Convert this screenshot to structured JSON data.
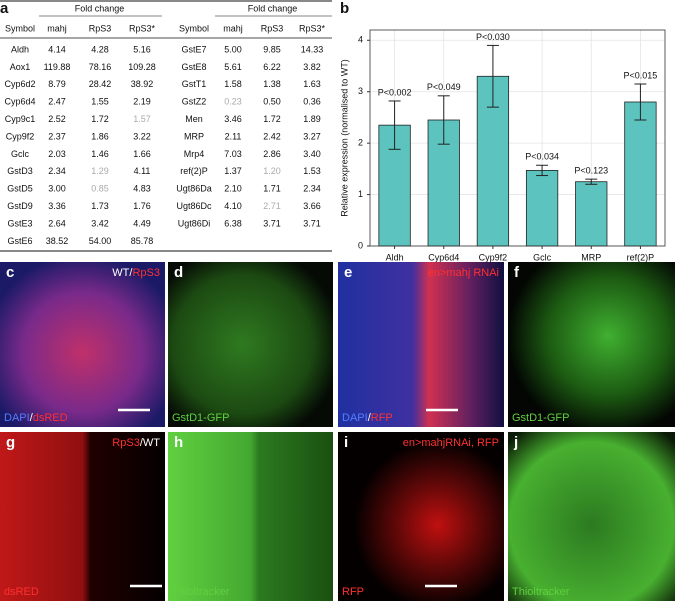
{
  "panel_a": {
    "label": "a",
    "tables": [
      {
        "group_header": "Fold change",
        "columns": [
          "Symbol",
          "mahj",
          "RpS3",
          "RpS3*"
        ],
        "rows": [
          [
            "Aldh",
            "4.14",
            "4.28",
            "5.16"
          ],
          [
            "Aox1",
            "119.88",
            "78.16",
            "109.28"
          ],
          [
            "Cyp6d2",
            "8.79",
            "28.42",
            "38.92"
          ],
          [
            "Cyp6d4",
            "2.47",
            "1.55",
            "2.19"
          ],
          [
            "Cyp9c1",
            "2.52",
            "1.72",
            {
              "text": "1.57",
              "color": "#aaaaaa"
            }
          ],
          [
            "Cyp9f2",
            "2.37",
            "1.86",
            "3.22"
          ],
          [
            "Gclc",
            "2.03",
            "1.46",
            "1.66"
          ],
          [
            "GstD3",
            "2.34",
            {
              "text": "1.29",
              "color": "#aaaaaa"
            },
            "4.11"
          ],
          [
            "GstD5",
            "3.00",
            {
              "text": "0.85",
              "color": "#aaaaaa"
            },
            "4.83"
          ],
          [
            "GstD9",
            "3.36",
            "1.73",
            "1.76"
          ],
          [
            "GstE3",
            "2.64",
            "3.42",
            "4.49"
          ],
          [
            "GstE6",
            "38.52",
            "54.00",
            "85.78"
          ]
        ]
      },
      {
        "group_header": "Fold change",
        "columns": [
          "Symbol",
          "mahj",
          "RpS3",
          "RpS3*"
        ],
        "rows": [
          [
            "GstE7",
            "5.00",
            "9.85",
            "14.33"
          ],
          [
            "GstE8",
            "5.61",
            "6.22",
            "3.82"
          ],
          [
            "GstT1",
            "1.58",
            "1.38",
            "1.63"
          ],
          [
            "GstZ2",
            {
              "text": "0.23",
              "color": "#aaaaaa"
            },
            "0.50",
            "0.36"
          ],
          [
            "Men",
            "3.46",
            "1.72",
            "1.89"
          ],
          [
            "MRP",
            "2.11",
            "2.42",
            "3.27"
          ],
          [
            "Mrp4",
            "7.03",
            "2.86",
            "3.40"
          ],
          [
            "ref(2)P",
            "1.37",
            {
              "text": "1.20",
              "color": "#aaaaaa"
            },
            "1.53"
          ],
          [
            "Ugt86Da",
            "2.10",
            "1.71",
            "2.34"
          ],
          [
            "Ugt86Dc",
            "4.10",
            {
              "text": "2.71",
              "color": "#aaaaaa"
            },
            "3.66"
          ],
          [
            "Ugt86Di",
            "6.38",
            "3.71",
            "3.71"
          ]
        ]
      }
    ]
  },
  "chart_data": {
    "type": "bar",
    "panel_label": "b",
    "y_label": "Relative expression (normalised to WT)",
    "categories": [
      "Aldh",
      "Cyp6d4",
      "Cyp9f2",
      "Gclc",
      "MRP",
      "ref(2)P"
    ],
    "values": [
      2.35,
      2.45,
      3.3,
      1.47,
      1.25,
      2.8
    ],
    "errors": [
      0.47,
      0.47,
      0.6,
      0.1,
      0.05,
      0.35
    ],
    "p_labels": [
      "P<0.002",
      "P<0.049",
      "P<0.030",
      "P<0.034",
      "P<0.123",
      "P<0.015"
    ],
    "color": "#5cc3be",
    "ylim": [
      0,
      4.2
    ],
    "yticks": [
      0,
      1,
      2,
      3,
      4
    ],
    "grid": true
  },
  "images": [
    {
      "label": "c",
      "top_right": [
        {
          "text": "WT",
          "color": "#ffffff"
        },
        {
          "text": "/",
          "color": "#ffffff"
        },
        {
          "text": "RpS3",
          "color": "#ff3030"
        }
      ],
      "bottom_left": [
        {
          "text": "DAPI",
          "color": "#4f7fff"
        },
        {
          "text": "/",
          "color": "#ffffff"
        },
        {
          "text": "dsRED",
          "color": "#ff3030"
        }
      ]
    },
    {
      "label": "d",
      "top_right": [],
      "bottom_left": [
        {
          "text": "GstD1-GFP",
          "color": "#60d040"
        }
      ]
    },
    {
      "label": "e",
      "top_right": [
        {
          "text": "en>mahj RNAi",
          "color": "#ff3030"
        }
      ],
      "bottom_left": [
        {
          "text": "DAPI",
          "color": "#4f7fff"
        },
        {
          "text": "/",
          "color": "#ffffff"
        },
        {
          "text": "RFP",
          "color": "#ff3030"
        }
      ]
    },
    {
      "label": "f",
      "top_right": [],
      "bottom_left": [
        {
          "text": "GstD1-GFP",
          "color": "#60d040"
        }
      ]
    },
    {
      "label": "g",
      "top_right": [
        {
          "text": "RpS3",
          "color": "#ff3030"
        },
        {
          "text": "/WT",
          "color": "#ffffff"
        }
      ],
      "bottom_left": [
        {
          "text": "dsRED",
          "color": "#ff3030"
        }
      ]
    },
    {
      "label": "h",
      "top_right": [],
      "bottom_left": [
        {
          "text": "Thioltracker",
          "color": "#60d040"
        }
      ]
    },
    {
      "label": "i",
      "top_right": [
        {
          "text": "en>mahjRNAi, RFP",
          "color": "#ff3030"
        }
      ],
      "bottom_left": [
        {
          "text": "RFP",
          "color": "#ff3030"
        }
      ]
    },
    {
      "label": "j",
      "top_right": [],
      "bottom_left": [
        {
          "text": "Thioltracker",
          "color": "#60d040"
        }
      ]
    }
  ]
}
